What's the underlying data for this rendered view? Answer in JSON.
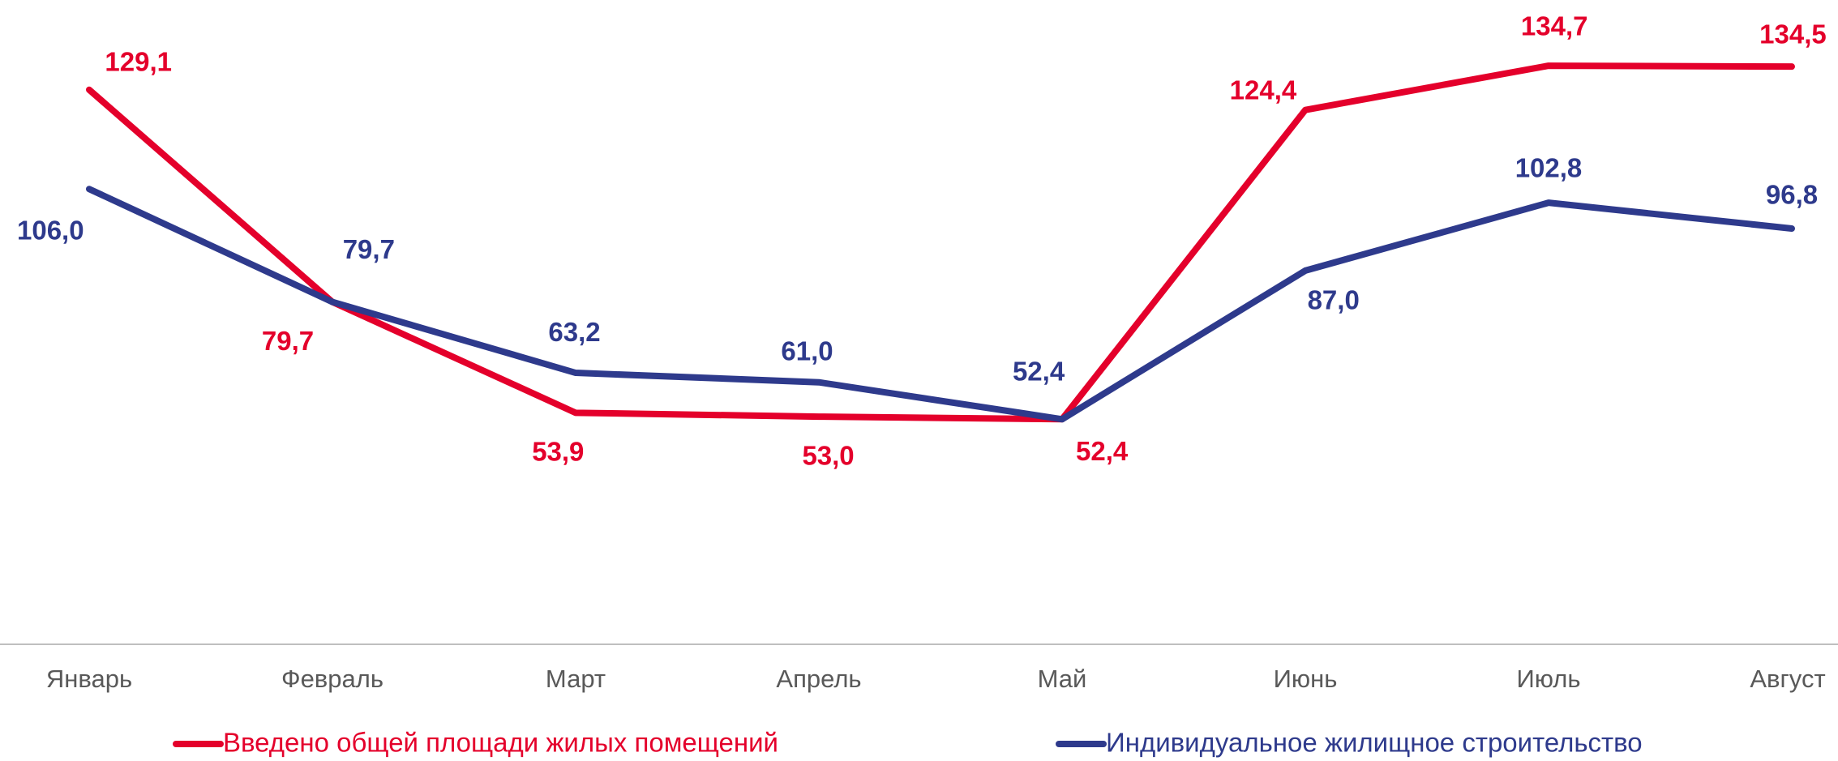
{
  "chart_data": {
    "type": "line",
    "categories": [
      "Январь",
      "Февраль",
      "Март",
      "Апрель",
      "Май",
      "Июнь",
      "Июль",
      "Август"
    ],
    "ylim": [
      0,
      150
    ],
    "series": [
      {
        "name": "Введено общей площади жилых помещений",
        "color": "#e4002b",
        "values": [
          129.1,
          79.7,
          53.9,
          53.0,
          52.4,
          124.4,
          134.7,
          134.5
        ],
        "value_labels": [
          "129,1",
          "79,7",
          "53,9",
          "53,0",
          "52,4",
          "124,4",
          "134,7",
          "134,5"
        ]
      },
      {
        "name": "Индивидуальное жилищное строительство",
        "color": "#2e3a8c",
        "values": [
          106.0,
          79.7,
          63.2,
          61.0,
          52.4,
          87.0,
          102.8,
          96.8
        ],
        "value_labels": [
          "106,0",
          "79,7",
          "63,2",
          "61,0",
          "52,4",
          "87,0",
          "102,8",
          "96,8"
        ]
      }
    ]
  }
}
